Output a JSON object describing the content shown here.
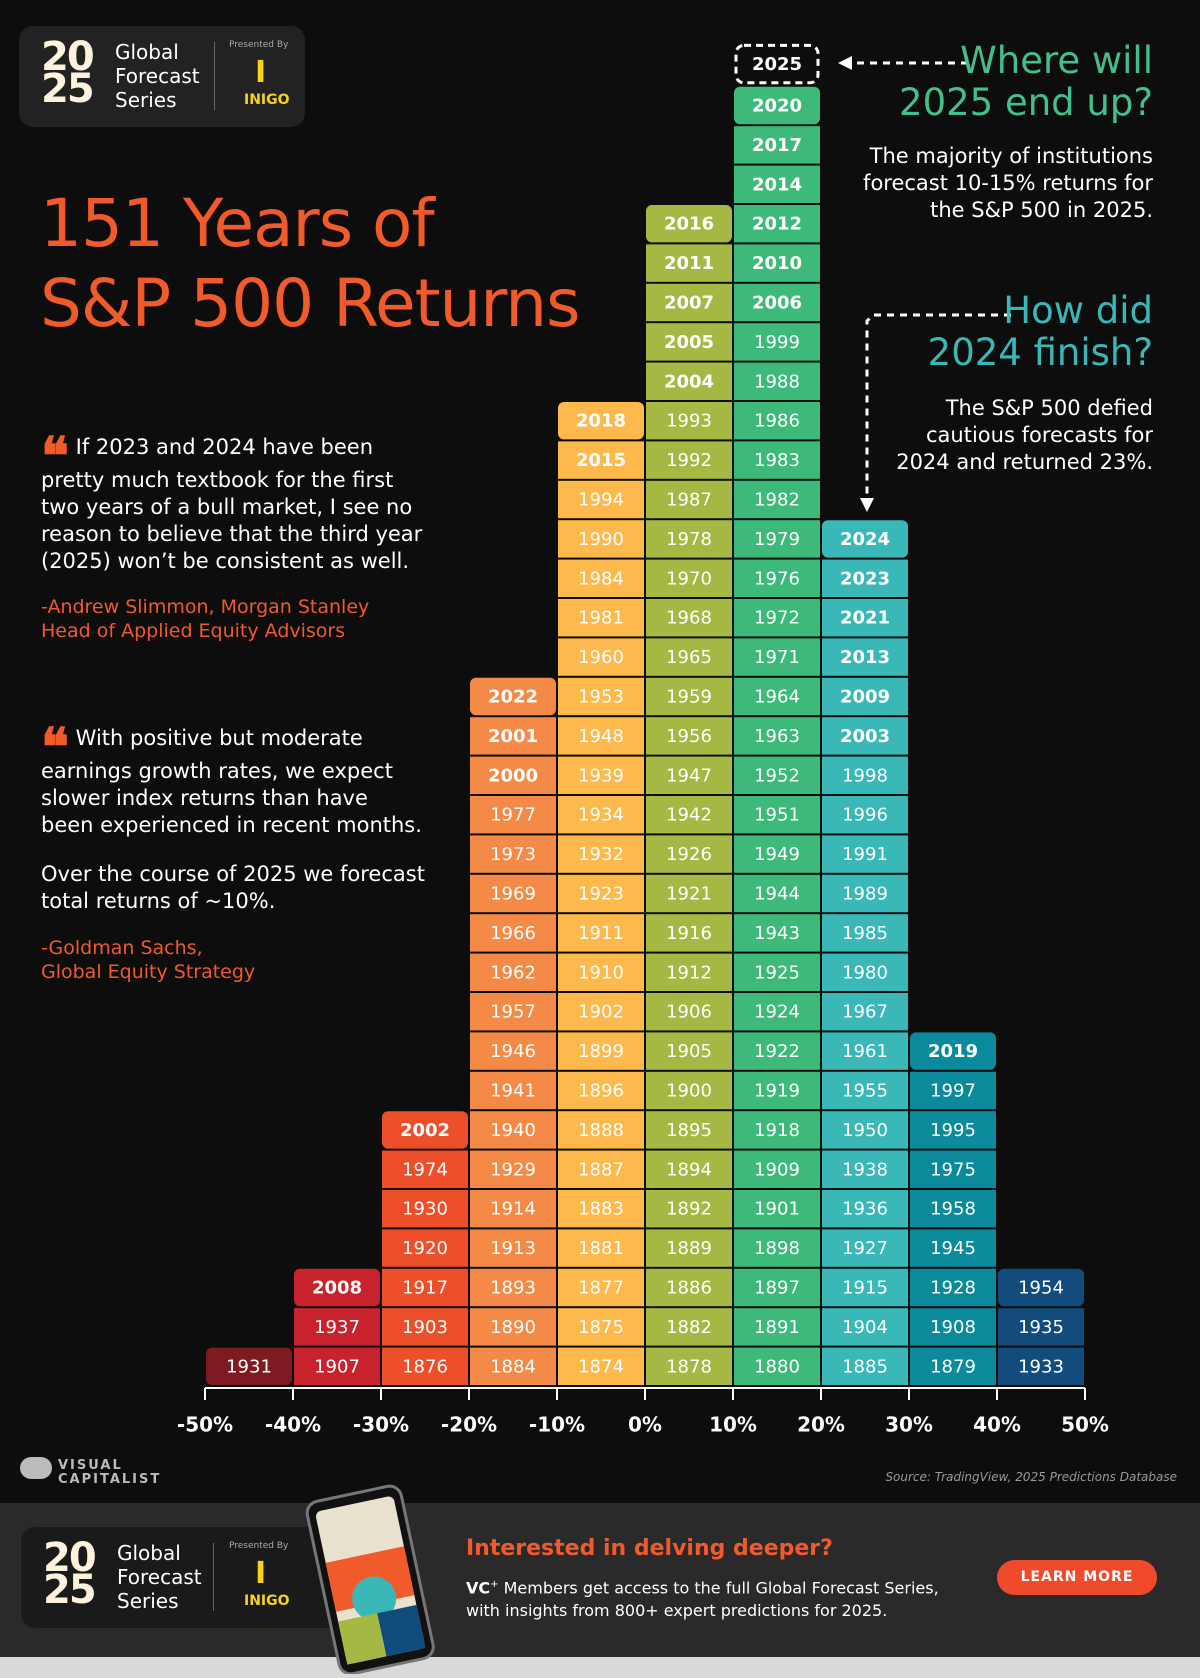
{
  "header": {
    "logo_top": "20",
    "logo_bottom": "25",
    "logo_lines": [
      "Global",
      "Forecast",
      "Series"
    ],
    "presented_by": "Presented By",
    "sponsor": "INIGO"
  },
  "title": [
    "151 Years of",
    "S&P 500 Returns"
  ],
  "quotes": [
    {
      "text": "If 2023 and 2024 have been pretty much textbook for the first two years of a bull market, I see no reason to believe that the third year (2025) won’t be consistent as well.",
      "attribution": [
        "-Andrew Slimmon, Morgan Stanley",
        "Head of Applied Equity Advisors"
      ]
    },
    {
      "text": "With positive but moderate earnings growth rates, we expect slower index returns than have been experienced in recent months.",
      "text2": "Over the course of 2025 we forecast total returns of ~10%.",
      "attribution": [
        "-Goldman Sachs,",
        "Global Equity Strategy"
      ]
    }
  ],
  "chart_data": {
    "type": "year-stack",
    "bins": [
      -50,
      -40,
      -30,
      -20,
      -10,
      0,
      10,
      20,
      30,
      40,
      50
    ],
    "xlim": [
      -50,
      50
    ],
    "xticks": [
      {
        "value": -50,
        "label": "-50%"
      },
      {
        "value": -40,
        "label": "-40%"
      },
      {
        "value": -30,
        "label": "-30%"
      },
      {
        "value": -20,
        "label": "-20%"
      },
      {
        "value": -10,
        "label": "-10%"
      },
      {
        "value": 0,
        "label": "0%"
      },
      {
        "value": 10,
        "label": "10%"
      },
      {
        "value": 20,
        "label": "20%"
      },
      {
        "value": 30,
        "label": "30%"
      },
      {
        "value": 40,
        "label": "40%"
      },
      {
        "value": 50,
        "label": "50%"
      }
    ],
    "columns": [
      {
        "color": "#7d1b20",
        "years": [
          1931
        ]
      },
      {
        "color": "#c8232c",
        "years": [
          1907,
          1937,
          2008
        ]
      },
      {
        "color": "#ee4f2b",
        "years": [
          1876,
          1903,
          1917,
          1920,
          1930,
          1974,
          2002
        ]
      },
      {
        "color": "#f48a45",
        "years": [
          1884,
          1890,
          1893,
          1913,
          1914,
          1929,
          1940,
          1941,
          1946,
          1957,
          1962,
          1966,
          1969,
          1973,
          1977,
          2000,
          2001,
          2022
        ]
      },
      {
        "color": "#fdb94c",
        "years": [
          1874,
          1875,
          1877,
          1881,
          1883,
          1887,
          1888,
          1896,
          1899,
          1902,
          1910,
          1911,
          1923,
          1932,
          1934,
          1939,
          1948,
          1953,
          1960,
          1981,
          1984,
          1990,
          1994,
          2015,
          2018
        ]
      },
      {
        "color": "#a5b844",
        "years": [
          1878,
          1882,
          1886,
          1889,
          1892,
          1894,
          1895,
          1900,
          1905,
          1906,
          1912,
          1916,
          1921,
          1926,
          1942,
          1947,
          1956,
          1959,
          1965,
          1968,
          1970,
          1978,
          1987,
          1992,
          1993,
          2004,
          2005,
          2007,
          2011,
          2016
        ]
      },
      {
        "color": "#3dba7a",
        "years": [
          1880,
          1891,
          1897,
          1898,
          1901,
          1909,
          1918,
          1919,
          1922,
          1924,
          1925,
          1943,
          1944,
          1949,
          1951,
          1952,
          1963,
          1964,
          1971,
          1972,
          1976,
          1979,
          1982,
          1983,
          1986,
          1988,
          1999,
          2006,
          2010,
          2012,
          2014,
          2017,
          2020
        ]
      },
      {
        "color": "#3ab8b8",
        "years": [
          1885,
          1904,
          1915,
          1927,
          1936,
          1938,
          1950,
          1955,
          1961,
          1967,
          1980,
          1985,
          1989,
          1991,
          1996,
          1998,
          2003,
          2009,
          2013,
          2021,
          2023,
          2024
        ]
      },
      {
        "color": "#0a8a9a",
        "years": [
          1879,
          1908,
          1928,
          1945,
          1958,
          1975,
          1995,
          1997,
          2019
        ]
      },
      {
        "color": "#114c7c",
        "years": [
          1933,
          1935,
          1954
        ]
      }
    ],
    "forecast_label": "2025",
    "annotations": [
      {
        "title": [
          "Where will",
          "2025 end up?"
        ],
        "text": [
          "The majority of institutions",
          "forecast 10-15% returns for",
          "the S&P 500 in 2025."
        ]
      },
      {
        "title": [
          "How did",
          "2024 finish?"
        ],
        "text": [
          "The S&P 500 defied",
          "cautious forecasts for",
          "2024 and returned 23%."
        ]
      }
    ]
  },
  "brand": "VISUAL CAPITALIST",
  "source": "Source: TradingView, 2025 Predictions Database",
  "footer": {
    "heading": "Interested in delving deeper?",
    "vc_label": "VC",
    "vc_sup": "+",
    "lines": [
      "Members get access to the full Global Forecast Series,",
      "with insights from 800+ expert predictions for 2025."
    ],
    "button": "LEARN MORE"
  }
}
